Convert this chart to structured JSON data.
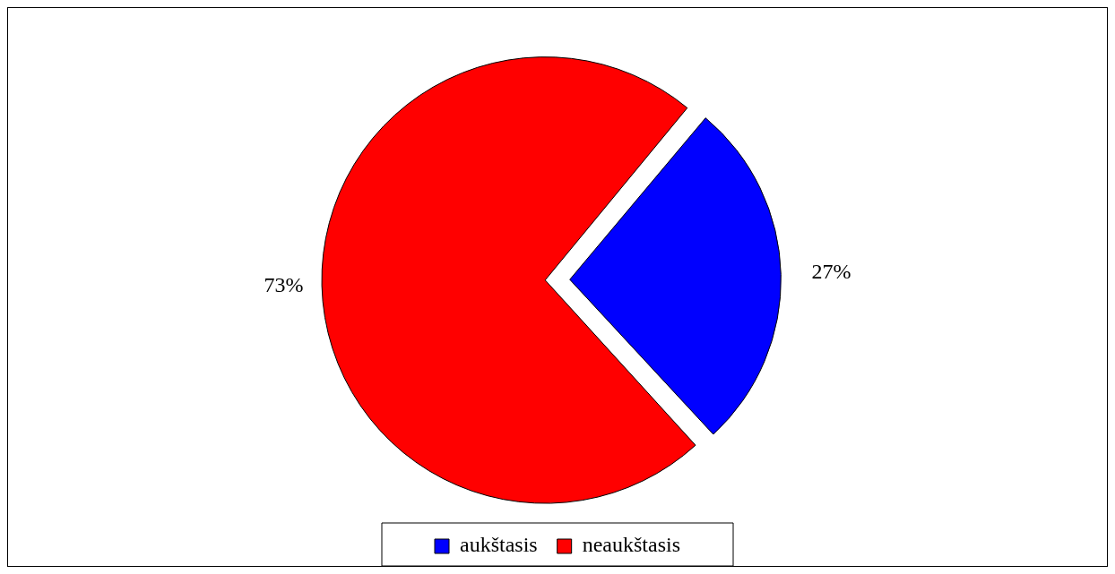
{
  "chart_data": {
    "type": "pie",
    "categories": [
      "aukštasis",
      "neaukštasis"
    ],
    "values": [
      27,
      73
    ],
    "colors": [
      "#0000ff",
      "#ff0000"
    ],
    "value_labels": [
      "27%",
      "73%"
    ],
    "legend": "bottom"
  }
}
